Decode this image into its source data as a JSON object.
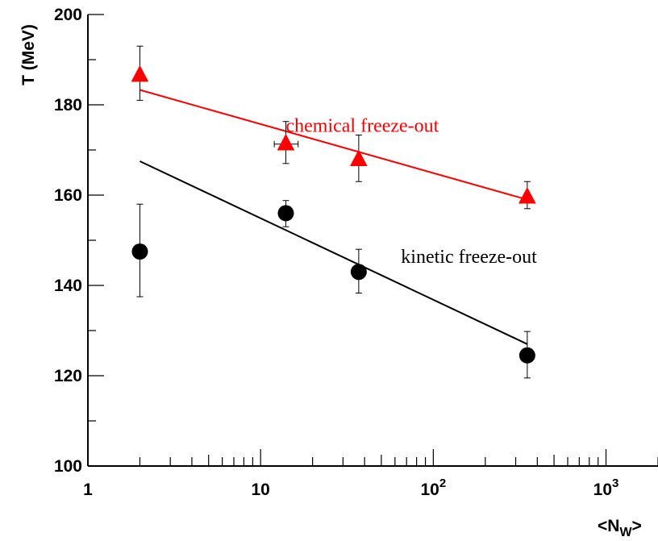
{
  "chart_data": {
    "type": "scatter",
    "title": "",
    "xlabel_main": "<N",
    "xlabel_sub": "W",
    "xlabel_end": ">",
    "ylabel": "T (MeV)",
    "xscale": "log",
    "xlim": [
      1,
      2000
    ],
    "ylim": [
      100,
      200
    ],
    "grid": false,
    "y_ticks": [
      {
        "value": 100,
        "label": "100"
      },
      {
        "value": 120,
        "label": "120"
      },
      {
        "value": 140,
        "label": "140"
      },
      {
        "value": 160,
        "label": "160"
      },
      {
        "value": 180,
        "label": "180"
      },
      {
        "value": 200,
        "label": "200"
      }
    ],
    "x_ticks": [
      {
        "value": 1,
        "base": "1",
        "exp": ""
      },
      {
        "value": 10,
        "base": "10",
        "exp": ""
      },
      {
        "value": 100,
        "base": "10",
        "exp": "2"
      },
      {
        "value": 1000,
        "base": "10",
        "exp": "3"
      }
    ],
    "series": [
      {
        "label": "chemical freeze-out",
        "marker": "triangle",
        "color": "#ff0000",
        "points": [
          {
            "x": 2,
            "y": 186.5,
            "y_lo": 181,
            "y_hi": 193,
            "x_lo": 2,
            "x_hi": 2
          },
          {
            "x": 14,
            "y": 171.3,
            "y_lo": 167,
            "y_hi": 176.3,
            "x_lo": 12,
            "x_hi": 16.5
          },
          {
            "x": 37,
            "y": 167.8,
            "y_lo": 163,
            "y_hi": 173.3,
            "x_lo": 37,
            "x_hi": 37
          },
          {
            "x": 350,
            "y": 159.5,
            "y_lo": 157,
            "y_hi": 163,
            "x_lo": 350,
            "x_hi": 350
          }
        ],
        "fit": {
          "x": [
            2,
            350
          ],
          "y": [
            183.3,
            159
          ]
        }
      },
      {
        "label": "kinetic freeze-out",
        "marker": "circle",
        "color": "#000000",
        "points": [
          {
            "x": 2,
            "y": 147.5,
            "y_lo": 137.5,
            "y_hi": 158
          },
          {
            "x": 14,
            "y": 156,
            "y_lo": 153,
            "y_hi": 158.8
          },
          {
            "x": 37,
            "y": 143,
            "y_lo": 138.3,
            "y_hi": 148
          },
          {
            "x": 350,
            "y": 124.5,
            "y_lo": 119.5,
            "y_hi": 129.8
          }
        ],
        "fit": {
          "x": [
            2,
            350
          ],
          "y": [
            167.5,
            127
          ]
        }
      }
    ],
    "annotations": [
      {
        "text": "chemical freeze-out",
        "x": 14,
        "y": 174,
        "color": "#ff0000"
      },
      {
        "text": "kinetic freeze-out",
        "x": 65,
        "y": 145,
        "color": "#000000"
      }
    ]
  }
}
